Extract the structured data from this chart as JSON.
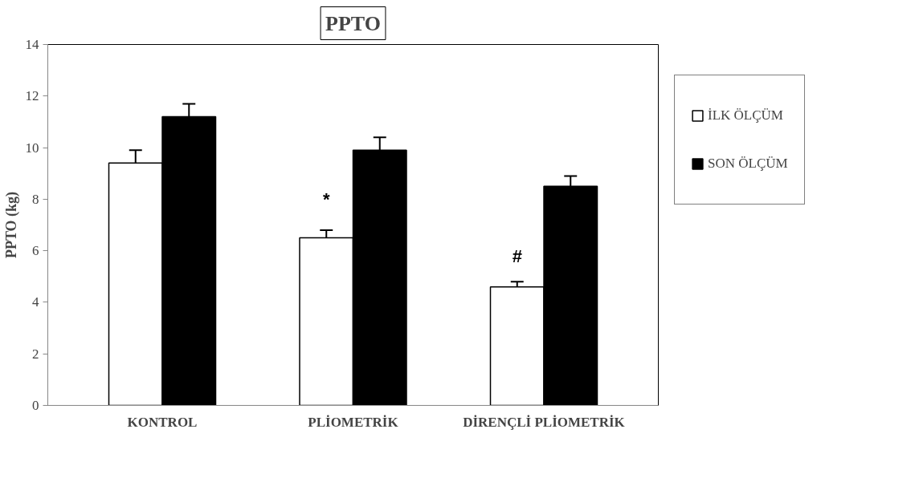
{
  "chart_data": {
    "type": "bar",
    "title": "PPTO",
    "ylabel": "PPTO (kg)",
    "categories": [
      "KONTROL",
      "PLİOMETRİK",
      "DİRENÇLİ PLİOMETRİK"
    ],
    "series": [
      {
        "name": "İLK ÖLÇÜM",
        "color": "#ffffff",
        "values": [
          9.4,
          6.5,
          4.6
        ],
        "errors": [
          0.5,
          0.3,
          0.2
        ]
      },
      {
        "name": "SON ÖLÇÜM",
        "color": "#000000",
        "values": [
          11.2,
          9.9,
          8.5
        ],
        "errors": [
          0.5,
          0.5,
          0.4
        ]
      }
    ],
    "annotations": [
      {
        "text": "*",
        "x": "PLİOMETRİK",
        "y": 8.0
      },
      {
        "text": "#",
        "x": "DİRENÇLİ PLİOMETRİK",
        "y": 5.8
      }
    ],
    "ylim": [
      0,
      14
    ],
    "yticks": [
      0,
      2,
      4,
      6,
      8,
      10,
      12,
      14
    ],
    "grid": false,
    "legend": "right"
  }
}
